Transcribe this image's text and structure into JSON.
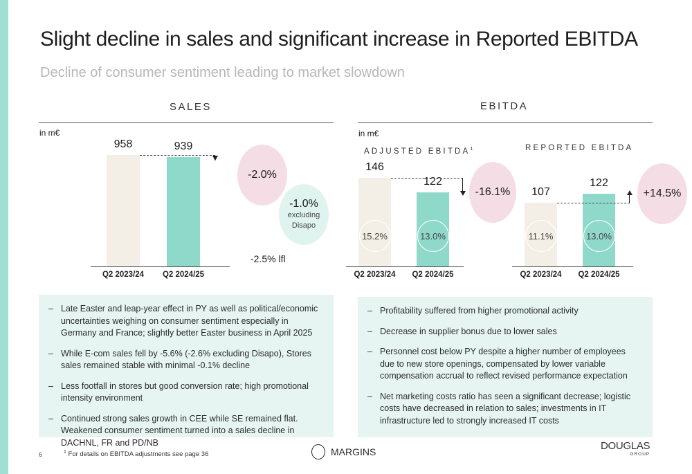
{
  "header": {
    "title": "Slight decline in sales and significant increase in Reported EBITDA",
    "subtitle": "Decline of consumer sentiment leading to market slowdown"
  },
  "sales": {
    "heading": "SALES",
    "unit": "in m€",
    "change_bubble": "-2.0%",
    "excl_bubble": {
      "value": "-1.0%",
      "label_line1": "excluding",
      "label_line2": "Disapo"
    },
    "lfl": "-2.5% lfl"
  },
  "ebitda": {
    "heading": "EBITDA",
    "unit": "in m€",
    "adjusted_heading": "ADJUSTED EBITDA",
    "adjusted_footnote_mark": "1",
    "reported_heading": "REPORTED EBITDA",
    "adjusted_change": "-16.1%",
    "reported_change": "+14.5%"
  },
  "chart_data": [
    {
      "type": "bar",
      "title": "SALES",
      "ylabel": "in m€",
      "categories": [
        "Q2 2023/24",
        "Q2 2024/25"
      ],
      "values": [
        958,
        939
      ],
      "value_labels": [
        "958",
        "939"
      ],
      "change": "-2.0%",
      "colors": [
        "#f3efe7",
        "#8fd9cb"
      ]
    },
    {
      "type": "bar",
      "title": "ADJUSTED EBITDA",
      "ylabel": "in m€",
      "categories": [
        "Q2 2023/24",
        "Q2 2024/25"
      ],
      "values": [
        146,
        122
      ],
      "value_labels": [
        "146",
        "122"
      ],
      "margins": [
        "15.2%",
        "13.0%"
      ],
      "change": "-16.1%",
      "colors": [
        "#f3efe7",
        "#8fd9cb"
      ]
    },
    {
      "type": "bar",
      "title": "REPORTED EBITDA",
      "categories": [
        "Q2 2023/24",
        "Q2 2024/25"
      ],
      "values": [
        107,
        122
      ],
      "value_labels": [
        "107",
        "122"
      ],
      "margins": [
        "11.1%",
        "13.0%"
      ],
      "change": "+14.5%",
      "colors": [
        "#f3efe7",
        "#8fd9cb"
      ]
    }
  ],
  "sales_notes": [
    "Late Easter and leap-year effect in PY as well as political/economic uncertainties weighing on consumer sentiment especially in Germany and France; slightly better Easter business in April 2025",
    "While E-com sales fell by -5.6% (-2.6% excluding Disapo), Stores sales remained stable with minimal  -0.1% decline",
    "Less footfall in stores but good conversion rate; high promotional intensity environment",
    "Continued strong sales growth in CEE while SE remained flat. Weakened consumer sentiment turned into a sales decline in DACHNL, FR and PD/NB"
  ],
  "ebitda_notes": [
    "Profitability suffered from higher promotional activity",
    "Decrease in supplier bonus due to lower sales",
    "Personnel cost below PY despite a higher number of employees due to new store openings, compensated by lower variable compensation accrual to reflect revised performance expectation",
    "Net marketing costs ratio has seen a significant decrease; logistic costs have decreased in relation to sales; investments in IT infrastructure led to strongly increased IT costs"
  ],
  "footer": {
    "page_number": "6",
    "footnote_mark": "1",
    "footnote": "For details on EBITDA adjustments see page 36",
    "section_label": "MARGINS",
    "brand": "DOUGLAS",
    "brand_sub": "GROUP"
  },
  "colors": {
    "accent_mint": "#8fd9cb",
    "bar_prev": "#f3efe7",
    "bubble_pink": "#f5dde5",
    "text_box_bg": "#e6f5f1"
  }
}
